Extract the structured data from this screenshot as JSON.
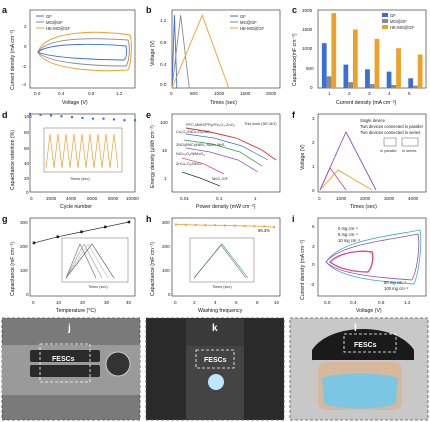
{
  "panels": {
    "a": {
      "label": "a",
      "ylabel": "Current density (mA cm⁻²)",
      "xlabel": "Voltage (V)",
      "xticks": [
        "0.0",
        "0.4",
        "0.8",
        "1.2"
      ],
      "yticks": [
        "2",
        "0",
        "-2",
        "-4"
      ],
      "legend": [
        "GF",
        "MO@GF",
        "HE-MO@GF"
      ]
    },
    "b": {
      "label": "b",
      "ylabel": "Voltage (V)",
      "xlabel": "Times (sec)",
      "xticks": [
        "0",
        "500",
        "1000",
        "1500",
        "2000"
      ],
      "yticks": [
        "0.0",
        "0.4",
        "0.8",
        "1.2"
      ],
      "legend": [
        "GF",
        "MO@GF",
        "HE-MO@GF"
      ]
    },
    "c": {
      "label": "c",
      "ylabel": "Capacitance(mF cm⁻²)",
      "xlabel": "Current density (mA cm⁻²)",
      "xticks": [
        "1",
        "2",
        "3",
        "4",
        "5"
      ],
      "yticks": [
        "0",
        "500",
        "1000",
        "1500",
        "2000"
      ],
      "legend": [
        "GF",
        "MO@GF",
        "HE-MO@GF"
      ]
    },
    "d": {
      "label": "d",
      "ylabel": "Capacitance retention (%)",
      "xlabel": "Cycle number",
      "xticks": [
        "0",
        "2000",
        "4000",
        "6000",
        "8000",
        "10000"
      ],
      "yticks": [
        "100",
        "80",
        "60",
        "40",
        "20",
        "0"
      ],
      "inset_xlabel": "Times (sec)",
      "inset_ylabel": "Voltage (V)"
    },
    "e": {
      "label": "e",
      "ylabel": "Energy density (μWh cm⁻²)",
      "xlabel": "Power density (mW cm⁻²)",
      "xticks": [
        "0.01",
        "0.1",
        "1"
      ],
      "yticks": [
        "1",
        "10",
        "100"
      ],
      "annotations": [
        "This work (HE-MO)",
        "PPC-MMO/PPy//Fe₂O₃-ZnO₃",
        "Co₃O₄/NiCo₂O₄//AC",
        "ZNO@MC@NB/₂-NiMn-NbS₂",
        "NiCo₂O₄/NiMoO₄",
        "ZnCo₂O₄/MnO₂",
        "MnO₂/GF"
      ]
    },
    "f": {
      "label": "f",
      "ylabel": "Voltage (V)",
      "xlabel": "Times (sec)",
      "xticks": [
        "0",
        "1000",
        "2000",
        "3000",
        "4000"
      ],
      "yticks": [
        "0",
        "1",
        "2",
        "3"
      ],
      "legend": [
        "Single device",
        "Two devices connected in parallel",
        "Two devices connected in series"
      ],
      "tags": [
        "In parallel",
        "In series"
      ]
    },
    "g": {
      "label": "g",
      "ylabel": "Capacitance (mF cm⁻²)",
      "xlabel": "Temperature (°C)",
      "xticks": [
        "0",
        "10",
        "20",
        "30",
        "40"
      ],
      "yticks": [
        "0",
        "100",
        "200",
        "300"
      ],
      "inset_xlabel": "Times (sec)",
      "inset_ylabel": "Voltage (V)"
    },
    "h": {
      "label": "h",
      "ylabel": "Capacitance (mF cm⁻²)",
      "xlabel": "Washing frequency",
      "xticks": [
        "0",
        "2",
        "4",
        "6",
        "8",
        "10"
      ],
      "yticks": [
        "0",
        "100",
        "200",
        "300"
      ],
      "retention": "96.3%",
      "inset_xlabel": "Times (sec)",
      "inset_ylabel": "Voltage (V)"
    },
    "i": {
      "label": "i",
      "ylabel": "Current density (mA cm⁻²)",
      "xlabel": "Voltage (V)",
      "xticks": [
        "0.0",
        "0.4",
        "0.8",
        "1.2"
      ],
      "yticks": [
        "6",
        "3",
        "0",
        "-3"
      ],
      "legend": [
        "0 mg cm⁻²",
        "5 mg cm⁻²",
        "10 mg cm⁻²",
        "50 mg cm⁻²",
        "100 mg cm⁻²"
      ]
    },
    "j": {
      "label": "j",
      "tag": "FESCs"
    },
    "k": {
      "label": "k",
      "tag": "FESCs"
    },
    "l": {
      "label": "l",
      "tag": "FESCs"
    }
  },
  "colors": {
    "gf": "#3b6fd8",
    "mo": "#8a8a8a",
    "he": "#f0a028",
    "pink": "#e04a8a",
    "purple": "#8a4ec8",
    "teal": "#3ab0b0"
  },
  "chart_data": [
    {
      "type": "line",
      "panel": "b",
      "x_unit": "sec",
      "series": [
        {
          "name": "GF",
          "x": [
            0,
            45,
            90
          ],
          "y": [
            0,
            1.4,
            0
          ]
        },
        {
          "name": "MO@GF",
          "x": [
            0,
            160,
            320
          ],
          "y": [
            0,
            1.4,
            0
          ]
        },
        {
          "name": "HE-MO@GF",
          "x": [
            0,
            560,
            1050
          ],
          "y": [
            0,
            1.4,
            0
          ]
        }
      ]
    },
    {
      "type": "bar",
      "panel": "c",
      "categories": [
        "1",
        "2",
        "3",
        "4",
        "5"
      ],
      "series": [
        {
          "name": "GF",
          "values": [
            1150,
            600,
            480,
            420,
            250
          ]
        },
        {
          "name": "MO@GF",
          "values": [
            300,
            150,
            100,
            80,
            60
          ]
        },
        {
          "name": "HE-MO@GF",
          "values": [
            1920,
            1500,
            1260,
            1020,
            860
          ]
        }
      ],
      "ylim": [
        0,
        2000
      ]
    },
    {
      "type": "scatter",
      "panel": "d",
      "x": [
        0,
        1000,
        2000,
        3000,
        4000,
        5000,
        6000,
        7000,
        8000,
        9000,
        10000
      ],
      "y": [
        100,
        99,
        98,
        97,
        96,
        95,
        94,
        94,
        93,
        92,
        92
      ],
      "ylim": [
        0,
        100
      ]
    },
    {
      "type": "line",
      "panel": "g",
      "x": [
        0,
        10,
        20,
        30,
        40
      ],
      "y": [
        215,
        240,
        260,
        280,
        300
      ],
      "ylim": [
        0,
        300
      ]
    },
    {
      "type": "line",
      "panel": "h",
      "x": [
        0,
        1,
        2,
        3,
        4,
        5,
        6,
        7,
        8,
        9,
        10
      ],
      "y": [
        298,
        297,
        296,
        295,
        295,
        294,
        293,
        292,
        291,
        290,
        287
      ],
      "ylim": [
        0,
        300
      ]
    }
  ],
  "photos": {
    "j_bg": "#7a7a7a",
    "k_bg": "#2a2a2a",
    "l_bg": "#c8c8c8"
  }
}
